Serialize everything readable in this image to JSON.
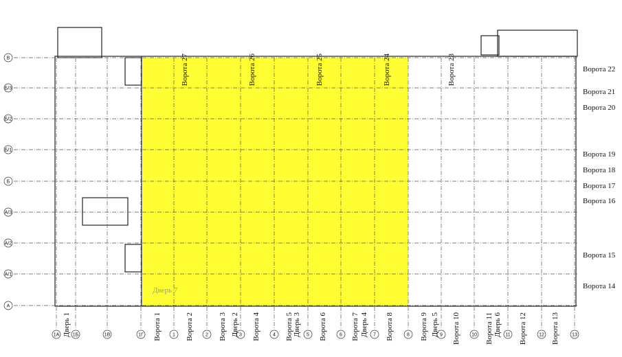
{
  "rows": [
    "В",
    "Б/3",
    "Б/2",
    "Б/1",
    "Б",
    "А/3",
    "А/2",
    "А/1",
    "А"
  ],
  "columns": [
    "1А",
    "1Б",
    "1В",
    "1Г",
    "1",
    "2",
    "3",
    "4",
    "5",
    "6",
    "7",
    "8",
    "9",
    "10",
    "11",
    "12",
    "13"
  ],
  "top_gates": [
    "Ворота 27",
    "Ворота 26",
    "Ворота 25",
    "Ворота 24",
    "Ворота 23"
  ],
  "right_gates": [
    "Ворота 22",
    "Ворота 21",
    "Ворота 20",
    "Ворота 19",
    "Ворота 18",
    "Ворота 17",
    "Ворота 16",
    "Ворота 15",
    "Ворота 14"
  ],
  "bottom_gates": [
    "Дверь 1",
    "Ворота 1",
    "Ворота 2",
    "Ворота 3",
    "Дверь 2",
    "Ворота 4",
    "Дверь 3",
    "Ворота 5",
    "Ворота 6",
    "Ворота 7",
    "Дверь 4",
    "Ворота 8",
    "Ворота 9",
    "Дверь 5",
    "Ворота 10",
    "Ворота 11",
    "Дверь 6",
    "Ворота 12",
    "Ворота 13"
  ],
  "inner_label": "Дверь 7"
}
